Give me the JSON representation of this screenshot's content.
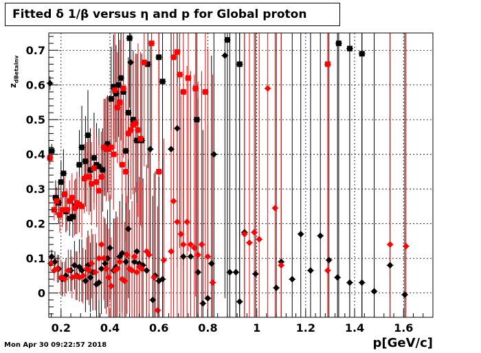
{
  "title": "Fitted δ 1/β versus η and p for Global proton",
  "timestamp": "Mon Apr 30 09:22:57 2018",
  "chart_data": {
    "type": "scatter",
    "title": "Fitted δ 1/β versus η and p for Global proton",
    "xlabel": "p[GeV/c]",
    "ylabel_main": "z",
    "ylabel_sub": "dBetaInv",
    "xlim": [
      0.15,
      1.72
    ],
    "ylim": [
      -0.07,
      0.75
    ],
    "xticks": [
      {
        "v": 0.2,
        "label": "0.2"
      },
      {
        "v": 0.4,
        "label": "0.4"
      },
      {
        "v": 0.6,
        "label": "0.6"
      },
      {
        "v": 0.8,
        "label": "0.8"
      },
      {
        "v": 1.0,
        "label": "1"
      },
      {
        "v": 1.2,
        "label": "1.2"
      },
      {
        "v": 1.4,
        "label": "1.4"
      },
      {
        "v": 1.6,
        "label": "1.6"
      }
    ],
    "yticks": [
      {
        "v": 0.0,
        "label": "0"
      },
      {
        "v": 0.1,
        "label": "0.1"
      },
      {
        "v": 0.2,
        "label": "0.2"
      },
      {
        "v": 0.3,
        "label": "0.3"
      },
      {
        "v": 0.4,
        "label": "0.4"
      },
      {
        "v": 0.5,
        "label": "0.5"
      },
      {
        "v": 0.6,
        "label": "0.6"
      },
      {
        "v": 0.7,
        "label": "0.7"
      }
    ],
    "grid": true,
    "series": [
      {
        "marker": "square",
        "color": "#000000",
        "points": [
          [
            0.162,
            0.41,
            0.02
          ],
          [
            0.178,
            0.275,
            0.05
          ],
          [
            0.19,
            0.26,
            0.06
          ],
          [
            0.2,
            0.32,
            0.06
          ],
          [
            0.21,
            0.345,
            0.07
          ],
          [
            0.22,
            0.235,
            0.06
          ],
          [
            0.235,
            0.215,
            0.05
          ],
          [
            0.248,
            0.22,
            0.06
          ],
          [
            0.26,
            0.25,
            0.08
          ],
          [
            0.275,
            0.37,
            0.1
          ],
          [
            0.285,
            0.42,
            0.12
          ],
          [
            0.3,
            0.38,
            0.13
          ],
          [
            0.31,
            0.455,
            0.13
          ],
          [
            0.32,
            0.355,
            0.12
          ],
          [
            0.335,
            0.39,
            0.13
          ],
          [
            0.345,
            0.37,
            0.12
          ],
          [
            0.355,
            0.365,
            0.11
          ],
          [
            0.37,
            0.355,
            0.12
          ],
          [
            0.38,
            0.42,
            0.14
          ],
          [
            0.39,
            0.43,
            0.14
          ],
          [
            0.405,
            0.56,
            0.15
          ],
          [
            0.415,
            0.595,
            0.15
          ],
          [
            0.425,
            0.575,
            0.14
          ],
          [
            0.435,
            0.6,
            0.15
          ],
          [
            0.445,
            0.62,
            0.18
          ],
          [
            0.455,
            0.58,
            0.15
          ],
          [
            0.465,
            0.41,
            0.17
          ],
          [
            0.475,
            0.52,
            0.16
          ],
          [
            0.48,
            0.735,
            0.2
          ],
          [
            0.495,
            0.5,
            0.2
          ],
          [
            0.51,
            0.44,
            0.25
          ],
          [
            0.53,
            0.44,
            0.25
          ],
          [
            0.555,
            0.66,
            0.3
          ],
          [
            0.6,
            0.68,
            0.3
          ],
          [
            0.615,
            0.61,
            0.4
          ],
          [
            0.755,
            0.5,
            0.6
          ],
          [
            0.88,
            0.73,
            0.9
          ],
          [
            0.93,
            0.66,
            0.9
          ],
          [
            1.335,
            0.72,
            0.9
          ],
          [
            1.38,
            0.705,
            0.9
          ],
          [
            1.43,
            0.69,
            0.9
          ]
        ]
      },
      {
        "marker": "square",
        "color": "#ff0000",
        "points": [
          [
            0.155,
            0.39,
            0.02
          ],
          [
            0.172,
            0.24,
            0.03
          ],
          [
            0.182,
            0.265,
            0.04
          ],
          [
            0.195,
            0.225,
            0.05
          ],
          [
            0.205,
            0.24,
            0.05
          ],
          [
            0.215,
            0.285,
            0.05
          ],
          [
            0.225,
            0.24,
            0.06
          ],
          [
            0.235,
            0.265,
            0.06
          ],
          [
            0.245,
            0.275,
            0.07
          ],
          [
            0.255,
            0.245,
            0.08
          ],
          [
            0.265,
            0.26,
            0.09
          ],
          [
            0.275,
            0.255,
            0.08
          ],
          [
            0.285,
            0.25,
            0.09
          ],
          [
            0.295,
            0.33,
            0.1
          ],
          [
            0.305,
            0.335,
            0.1
          ],
          [
            0.315,
            0.335,
            0.11
          ],
          [
            0.325,
            0.315,
            0.12
          ],
          [
            0.335,
            0.36,
            0.12
          ],
          [
            0.345,
            0.32,
            0.13
          ],
          [
            0.355,
            0.295,
            0.13
          ],
          [
            0.365,
            0.335,
            0.13
          ],
          [
            0.375,
            0.42,
            0.14
          ],
          [
            0.385,
            0.415,
            0.15
          ],
          [
            0.395,
            0.415,
            0.15
          ],
          [
            0.405,
            0.42,
            0.15
          ],
          [
            0.415,
            0.4,
            0.16
          ],
          [
            0.42,
            0.585,
            0.17
          ],
          [
            0.43,
            0.535,
            0.16
          ],
          [
            0.44,
            0.55,
            0.18
          ],
          [
            0.45,
            0.37,
            0.18
          ],
          [
            0.455,
            0.59,
            0.2
          ],
          [
            0.465,
            0.35,
            0.2
          ],
          [
            0.475,
            0.46,
            0.2
          ],
          [
            0.485,
            0.47,
            0.2
          ],
          [
            0.495,
            0.485,
            0.2
          ],
          [
            0.505,
            0.49,
            0.2
          ],
          [
            0.515,
            0.47,
            0.25
          ],
          [
            0.525,
            0.445,
            0.25
          ],
          [
            0.54,
            0.665,
            0.3
          ],
          [
            0.57,
            0.72,
            0.3
          ],
          [
            0.6,
            0.35,
            0.4
          ],
          [
            0.66,
            0.68,
            0.4
          ],
          [
            0.675,
            0.695,
            0.5
          ],
          [
            0.685,
            0.63,
            0.5
          ],
          [
            0.7,
            0.58,
            0.5
          ],
          [
            0.72,
            0.62,
            0.5
          ],
          [
            0.75,
            0.59,
            0.6
          ],
          [
            0.79,
            0.58,
            0.6
          ],
          [
            1.29,
            0.66,
            0.9
          ]
        ]
      },
      {
        "marker": "diamond",
        "color": "#000000",
        "points": [
          [
            0.155,
            0.605,
            0.02
          ],
          [
            0.162,
            0.105,
            0.02
          ],
          [
            0.175,
            0.09,
            0.03
          ],
          [
            0.19,
            0.07,
            0.04
          ],
          [
            0.205,
            0.04,
            0.05
          ],
          [
            0.22,
            0.05,
            0.05
          ],
          [
            0.24,
            0.065,
            0.06
          ],
          [
            0.255,
            0.08,
            0.07
          ],
          [
            0.265,
            0.05,
            0.07
          ],
          [
            0.275,
            0.075,
            0.08
          ],
          [
            0.285,
            0.065,
            0.09
          ],
          [
            0.3,
            0.035,
            0.09
          ],
          [
            0.31,
            0.08,
            0.1
          ],
          [
            0.32,
            0.045,
            0.1
          ],
          [
            0.33,
            0.06,
            0.11
          ],
          [
            0.345,
            0.025,
            0.12
          ],
          [
            0.355,
            0.03,
            0.12
          ],
          [
            0.365,
            0.07,
            0.13
          ],
          [
            0.38,
            0.085,
            0.13
          ],
          [
            0.39,
            0.1,
            0.14
          ],
          [
            0.4,
            0.13,
            0.15
          ],
          [
            0.415,
            0.065,
            0.15
          ],
          [
            0.425,
            0.075,
            0.16
          ],
          [
            0.44,
            0.105,
            0.16
          ],
          [
            0.45,
            0.115,
            0.17
          ],
          [
            0.465,
            0.09,
            0.17
          ],
          [
            0.475,
            0.185,
            0.2
          ],
          [
            0.485,
            0.665,
            0.2
          ],
          [
            0.5,
            0.09,
            0.2
          ],
          [
            0.51,
            0.12,
            0.2
          ],
          [
            0.52,
            0.085,
            0.25
          ],
          [
            0.535,
            0.08,
            0.25
          ],
          [
            0.55,
            0.065,
            0.25
          ],
          [
            0.565,
            0.415,
            0.3
          ],
          [
            0.575,
            -0.02,
            0.3
          ],
          [
            0.585,
            0.05,
            0.3
          ],
          [
            0.6,
            0.035,
            0.3
          ],
          [
            0.615,
            0.04,
            0.35
          ],
          [
            0.65,
            0.415,
            0.4
          ],
          [
            0.675,
            0.475,
            0.4
          ],
          [
            0.7,
            0.105,
            0.4
          ],
          [
            0.73,
            0.105,
            0.5
          ],
          [
            0.76,
            0.06,
            0.5
          ],
          [
            0.78,
            -0.03,
            0.5
          ],
          [
            0.8,
            -0.015,
            0.5
          ],
          [
            0.815,
            0.085,
            0.6
          ],
          [
            0.825,
            0.4,
            0.6
          ],
          [
            0.87,
            0.685,
            0.7
          ],
          [
            0.89,
            0.06,
            0.7
          ],
          [
            0.915,
            0.06,
            0.8
          ],
          [
            0.93,
            -0.025,
            0.8
          ],
          [
            0.95,
            0.175,
            0.8
          ],
          [
            0.995,
            0.055,
            0.9
          ],
          [
            1.08,
            0.015,
            0.9
          ],
          [
            1.1,
            0.09,
            0.9
          ],
          [
            1.145,
            0.04,
            0.9
          ],
          [
            1.18,
            0.17,
            0.9
          ],
          [
            1.22,
            0.065,
            0.9
          ],
          [
            1.26,
            0.165,
            0.9
          ],
          [
            1.295,
            0.095,
            0.9
          ],
          [
            1.33,
            0.045,
            0.9
          ],
          [
            1.38,
            0.03,
            0.9
          ],
          [
            1.43,
            0.03,
            0.9
          ],
          [
            1.48,
            0.005,
            0.9
          ],
          [
            1.545,
            0.08,
            0.9
          ],
          [
            1.605,
            -0.005,
            0.9
          ]
        ]
      },
      {
        "marker": "diamond",
        "color": "#ff0000",
        "points": [
          [
            0.158,
            0.085,
            0.02
          ],
          [
            0.172,
            0.065,
            0.03
          ],
          [
            0.185,
            0.07,
            0.04
          ],
          [
            0.2,
            0.045,
            0.05
          ],
          [
            0.215,
            0.04,
            0.05
          ],
          [
            0.23,
            0.065,
            0.06
          ],
          [
            0.245,
            0.045,
            0.06
          ],
          [
            0.26,
            0.05,
            0.07
          ],
          [
            0.275,
            0.045,
            0.07
          ],
          [
            0.29,
            0.05,
            0.08
          ],
          [
            0.305,
            0.07,
            0.09
          ],
          [
            0.315,
            0.065,
            0.1
          ],
          [
            0.325,
            0.085,
            0.1
          ],
          [
            0.34,
            0.06,
            0.11
          ],
          [
            0.355,
            0.1,
            0.12
          ],
          [
            0.365,
            0.14,
            0.12
          ],
          [
            0.375,
            0.1,
            0.12
          ],
          [
            0.385,
            0.07,
            0.13
          ],
          [
            0.395,
            0.045,
            0.14
          ],
          [
            0.405,
            0.02,
            0.14
          ],
          [
            0.42,
            0.065,
            0.15
          ],
          [
            0.43,
            0.07,
            0.15
          ],
          [
            0.44,
            0.09,
            0.16
          ],
          [
            0.45,
            0.04,
            0.16
          ],
          [
            0.46,
            0.035,
            0.17
          ],
          [
            0.47,
            0.11,
            0.17
          ],
          [
            0.48,
            0.07,
            0.17
          ],
          [
            0.49,
            0.065,
            0.2
          ],
          [
            0.5,
            0.105,
            0.2
          ],
          [
            0.51,
            0.06,
            0.2
          ],
          [
            0.52,
            0.075,
            0.25
          ],
          [
            0.53,
            0.07,
            0.25
          ],
          [
            0.55,
            0.12,
            0.25
          ],
          [
            0.56,
            0.11,
            0.3
          ],
          [
            0.58,
            0.045,
            0.3
          ],
          [
            0.595,
            -0.05,
            0.3
          ],
          [
            0.62,
            0.095,
            0.35
          ],
          [
            0.65,
            0.12,
            0.35
          ],
          [
            0.66,
            0.265,
            0.4
          ],
          [
            0.675,
            0.205,
            0.4
          ],
          [
            0.69,
            0.17,
            0.4
          ],
          [
            0.7,
            0.14,
            0.45
          ],
          [
            0.715,
            0.205,
            0.45
          ],
          [
            0.73,
            0.14,
            0.5
          ],
          [
            0.745,
            0.13,
            0.5
          ],
          [
            0.76,
            0.11,
            0.5
          ],
          [
            0.775,
            0.14,
            0.5
          ],
          [
            0.8,
            0.105,
            0.6
          ],
          [
            0.82,
            0.03,
            0.6
          ],
          [
            0.95,
            0.17,
            0.8
          ],
          [
            0.97,
            0.145,
            0.8
          ],
          [
            0.99,
            0.175,
            0.8
          ],
          [
            1.01,
            0.155,
            0.8
          ],
          [
            1.045,
            0.59,
            0.9
          ],
          [
            1.075,
            0.245,
            0.9
          ],
          [
            1.1,
            0.08,
            0.9
          ],
          [
            1.29,
            0.065,
            0.9
          ],
          [
            1.545,
            0.14,
            0.9
          ],
          [
            1.61,
            0.135,
            0.9
          ]
        ]
      }
    ]
  }
}
